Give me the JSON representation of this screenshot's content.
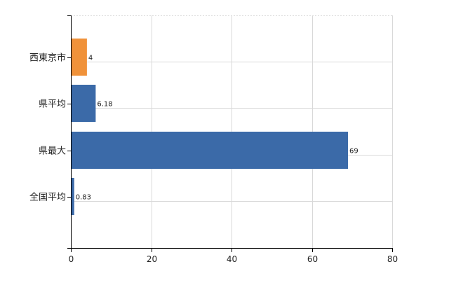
{
  "chart_data": {
    "type": "bar",
    "orientation": "horizontal",
    "categories": [
      "西東京市",
      "県平均",
      "県最大",
      "全国平均"
    ],
    "values": [
      4,
      6.18,
      69,
      0.83
    ],
    "data_labels": [
      "4",
      "6.18",
      "69",
      "0.83"
    ],
    "bar_colors": [
      "#f0923a",
      "#3b6aa8",
      "#3b6aa8",
      "#3b6aa8"
    ],
    "xlim": [
      0,
      80
    ],
    "xticks": [
      0,
      20,
      40,
      60,
      80
    ],
    "xtick_labels": [
      "0",
      "20",
      "40",
      "60",
      "80"
    ],
    "grid": true,
    "title": "",
    "xlabel": "",
    "ylabel": ""
  }
}
